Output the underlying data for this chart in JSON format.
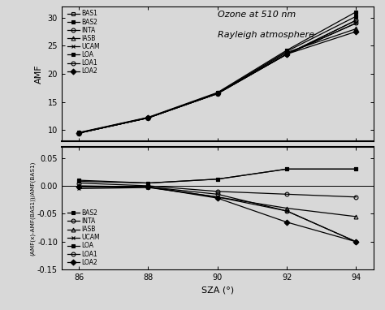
{
  "sza": [
    86,
    88,
    90,
    92,
    94
  ],
  "title1": "Ozone at 510 nm",
  "title2": "Rayleigh atmosphere",
  "ylabel1": "AMF",
  "ylabel2": "(AMF(x)-AMF(BAS1))/AMF(BAS1)",
  "xlabel": "SZA (°)",
  "amf_BAS1": [
    9.5,
    12.2,
    16.5,
    23.5,
    29.5
  ],
  "amf_BAS2": [
    9.6,
    12.3,
    16.7,
    24.2,
    31.0
  ],
  "amf_INTA": [
    9.5,
    12.2,
    16.5,
    23.5,
    29.0
  ],
  "amf_IASB": [
    9.5,
    12.2,
    16.6,
    23.8,
    28.0
  ],
  "amf_UCAM": [
    9.5,
    12.2,
    16.5,
    23.5,
    29.0
  ],
  "amf_LOA": [
    9.55,
    12.25,
    16.55,
    24.0,
    30.2
  ],
  "amf_LOA1": [
    9.5,
    12.2,
    16.5,
    23.5,
    29.5
  ],
  "amf_LOA2": [
    9.5,
    12.2,
    16.6,
    23.5,
    27.5
  ],
  "rel_BAS2": [
    0.01,
    0.005,
    0.012,
    0.03,
    0.03
  ],
  "rel_INTA": [
    0.005,
    0.0,
    -0.01,
    -0.015,
    -0.02
  ],
  "rel_IASB": [
    0.0,
    -0.002,
    -0.02,
    -0.04,
    -0.055
  ],
  "rel_UCAM": [
    -0.005,
    -0.003,
    -0.02,
    -0.045,
    -0.1
  ],
  "rel_LOA": [
    0.008,
    0.005,
    0.012,
    0.03,
    0.03
  ],
  "rel_LOA1": [
    -0.002,
    -0.002,
    -0.015,
    -0.045,
    -0.1
  ],
  "rel_LOA2": [
    -0.002,
    -0.002,
    -0.022,
    -0.065,
    -0.1
  ],
  "ylim1": [
    8,
    32
  ],
  "ylim2": [
    -0.15,
    0.07
  ],
  "yticks1": [
    10,
    15,
    20,
    25,
    30
  ],
  "yticks2": [
    -0.15,
    -0.1,
    -0.05,
    0.0,
    0.05
  ],
  "series1_labels": [
    "BAS1",
    "BAS2",
    "INTA",
    "IASB",
    "UCAM",
    "LOA",
    "LOA1",
    "LOA2"
  ],
  "series2_labels": [
    "BAS2",
    "INTA",
    "IASB",
    "UCAM",
    "LOA",
    "LOA1",
    "LOA2"
  ],
  "markers1": [
    "s",
    "s",
    "o",
    "^",
    "x",
    "s",
    "o",
    "D"
  ],
  "fillstyle1": [
    "none",
    "full",
    "none",
    "none",
    "none",
    "full",
    "none",
    "full"
  ],
  "markers2": [
    "s",
    "o",
    "^",
    "x",
    "s",
    "o",
    "D"
  ],
  "fillstyle2": [
    "full",
    "none",
    "none",
    "none",
    "full",
    "none",
    "full"
  ]
}
